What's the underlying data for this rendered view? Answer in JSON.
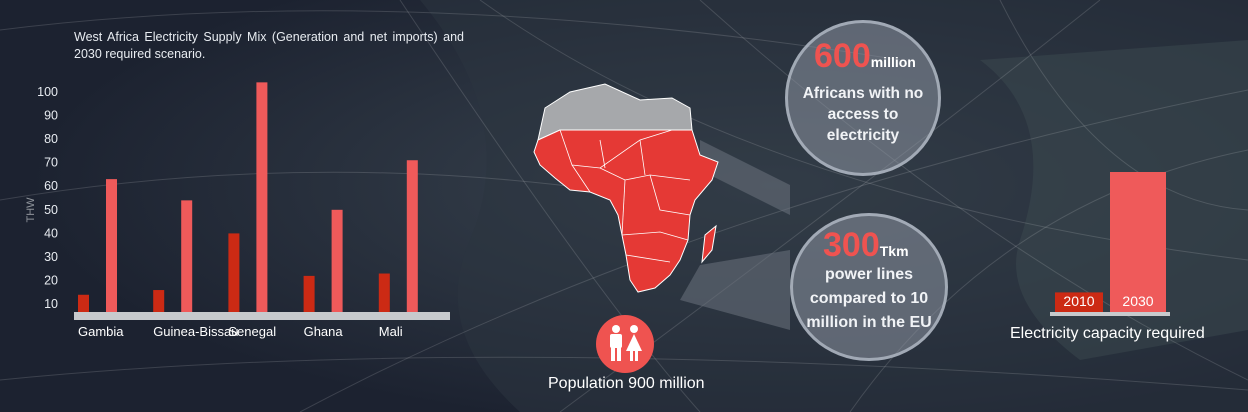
{
  "chart_data": {
    "type": "bar",
    "title": "West Africa Electricity Supply Mix (Generation and net imports) and 2030 required scenario.",
    "ylabel": "THW",
    "xlabel": "",
    "categories": [
      "Gambia",
      "Guinea-Bissau",
      "Senegal",
      "Ghana",
      "Mali"
    ],
    "series": [
      {
        "name": "",
        "values": [
          14,
          16,
          40,
          22,
          23
        ],
        "color": "#cc2a14"
      },
      {
        "name": "",
        "values": [
          63,
          54,
          104,
          50,
          71
        ],
        "color": "#ef5a5a"
      }
    ],
    "ylim": [
      5,
      105
    ],
    "yticks": [
      10,
      20,
      30,
      40,
      50,
      60,
      70,
      80,
      90,
      100
    ],
    "grid": false
  },
  "stats": {
    "africans": {
      "number": "600",
      "unit": "million",
      "text": "Africans with no access to electricity"
    },
    "power_lines": {
      "number": "300",
      "unit": "Tkm",
      "text": "power lines compared to 10 million in the EU"
    }
  },
  "population": {
    "label": "Population 900 million",
    "icon": "people-icon"
  },
  "capacity": {
    "label": "Electricity capacity required",
    "years": [
      "2010",
      "2030"
    ],
    "values": [
      14,
      100
    ],
    "colors": [
      "#cc2a14",
      "#ef5a5a"
    ]
  },
  "colors": {
    "map_red": "#e53935",
    "map_grey": "#a6a8ab",
    "axis": "#c7cacd"
  }
}
